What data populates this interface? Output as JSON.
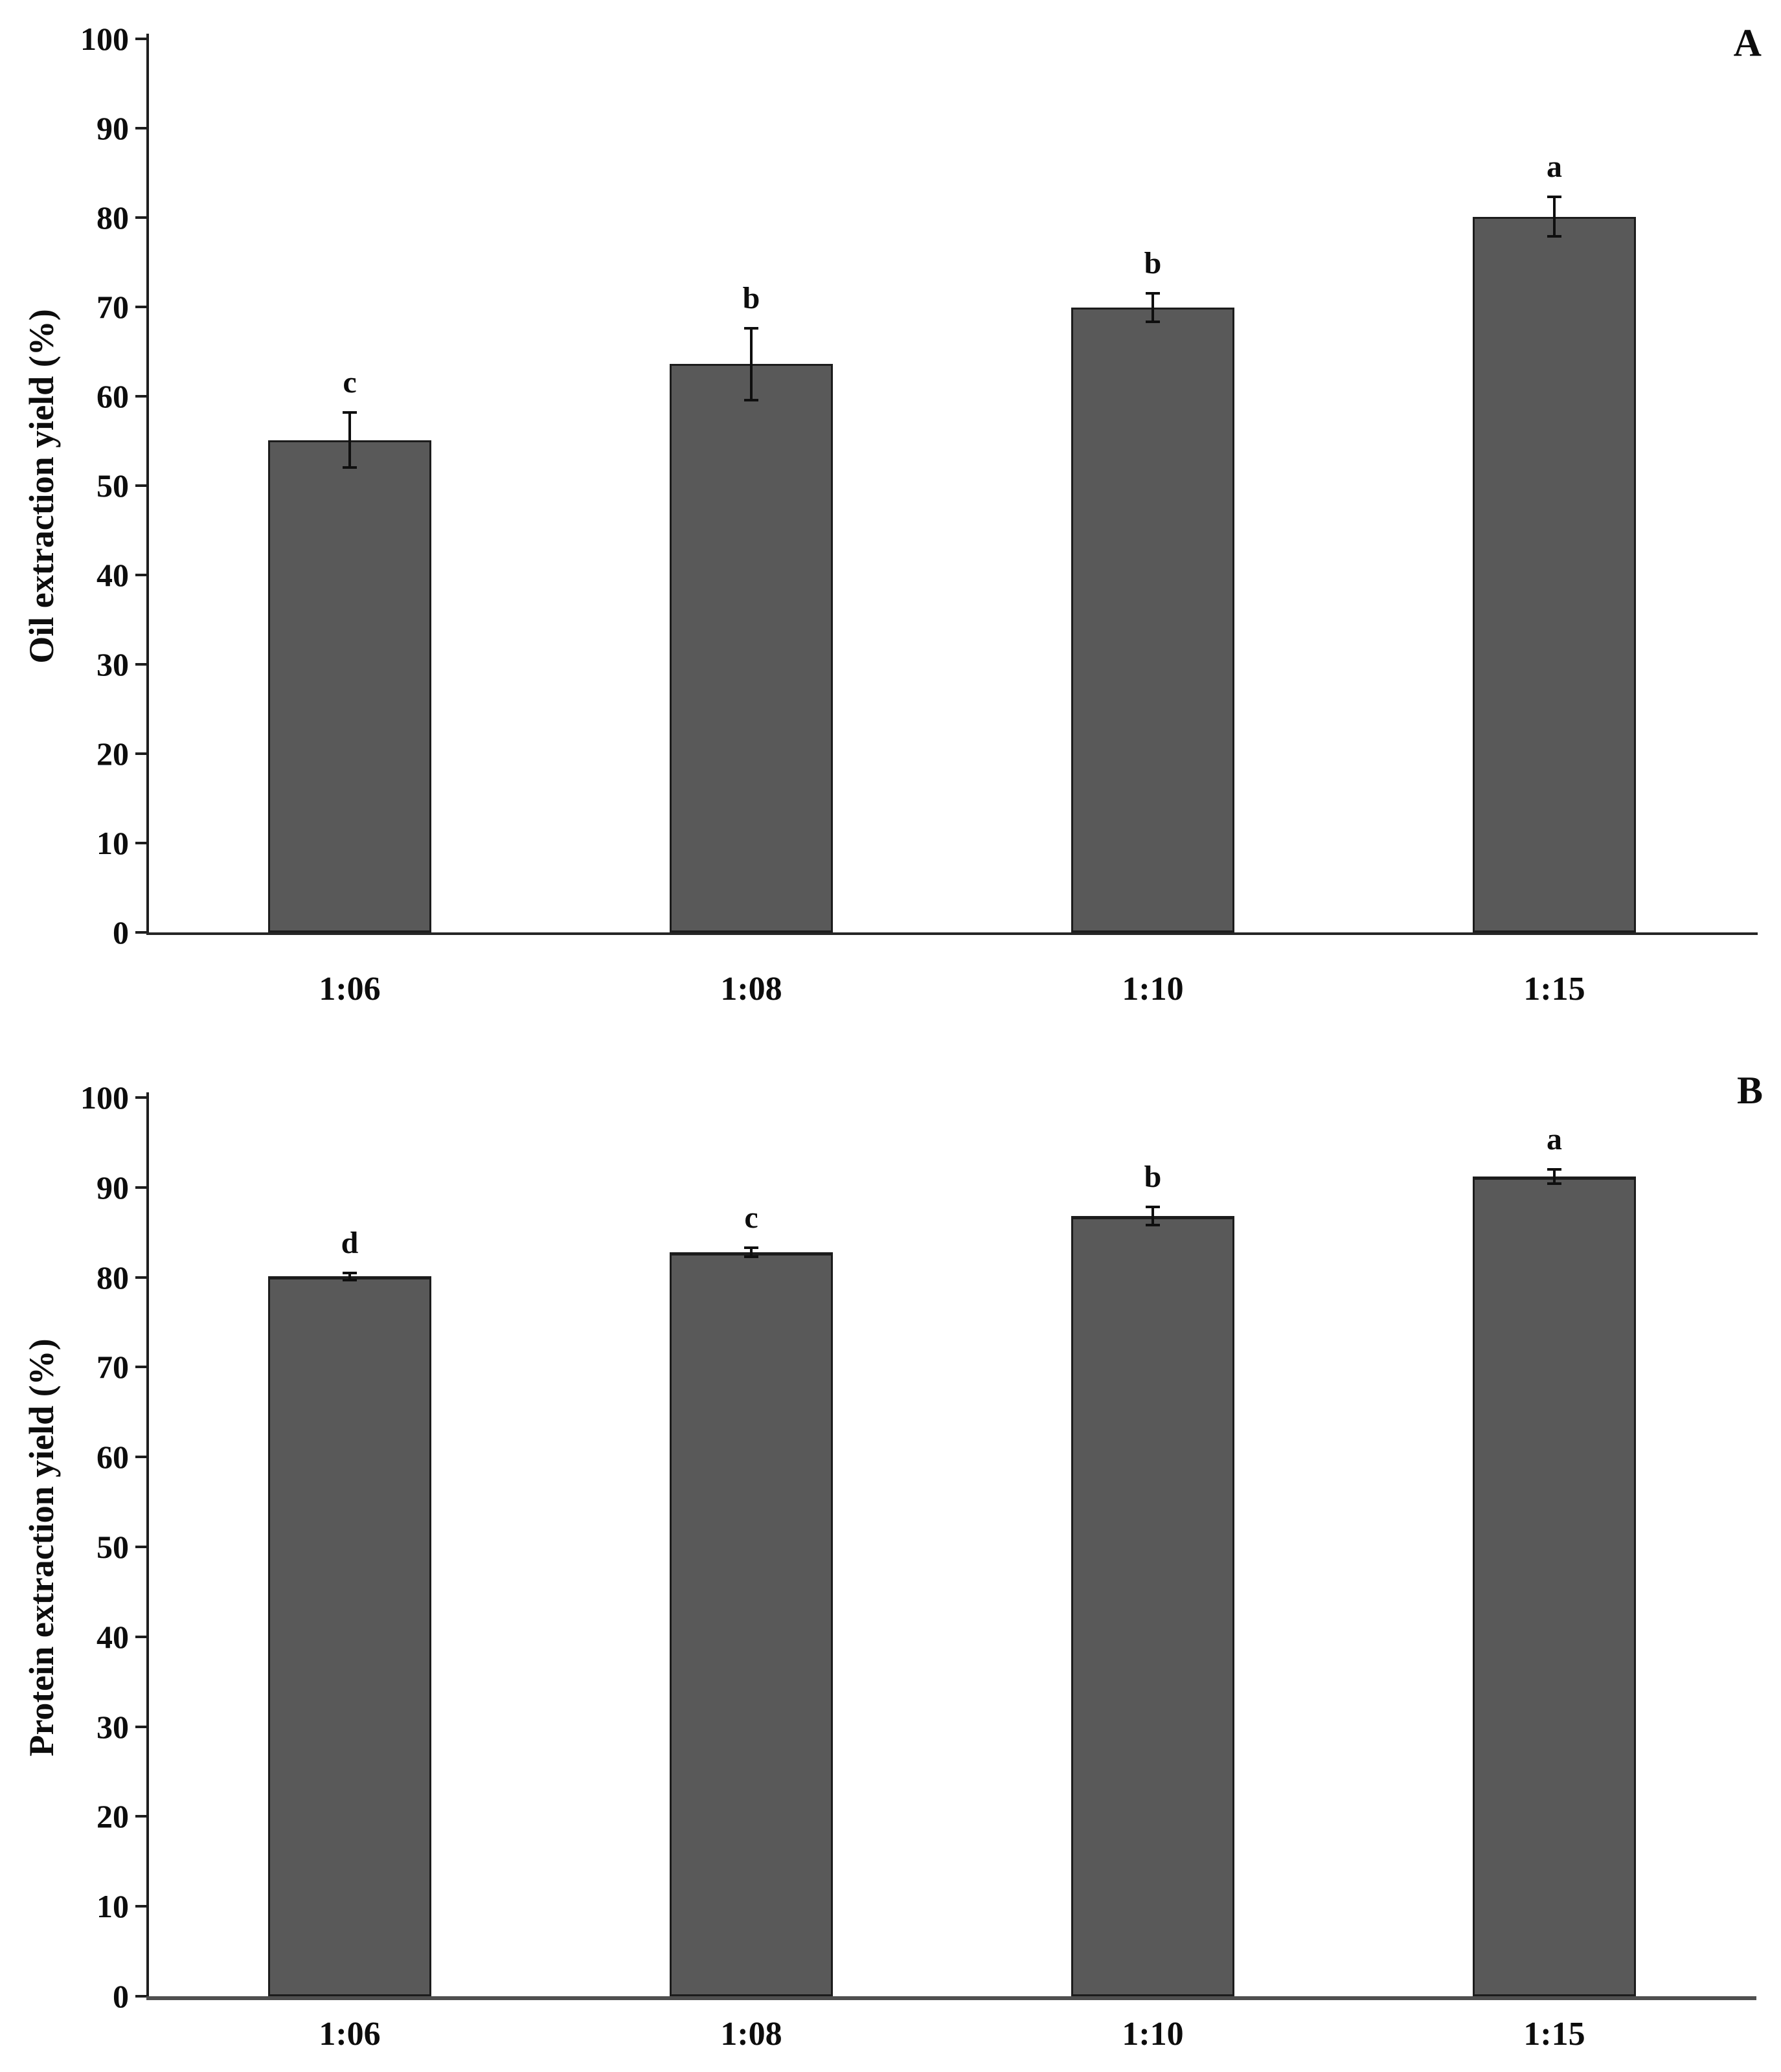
{
  "chart_data": [
    {
      "type": "bar",
      "panel_label": "A",
      "ylabel": "Oil extraction yield (%)",
      "xlabel": "",
      "ylim": [
        0,
        100
      ],
      "ytick_step": 10,
      "yticks": [
        0,
        10,
        20,
        30,
        40,
        50,
        60,
        70,
        80,
        90,
        100
      ],
      "categories": [
        "1:06",
        "1:08",
        "1:10",
        "1:15"
      ],
      "values": [
        55.1,
        63.6,
        69.9,
        80.1
      ],
      "error_bars": [
        3.1,
        4.0,
        1.6,
        2.2
      ],
      "significance_letters": [
        "c",
        "b",
        "b",
        "a"
      ],
      "bar_color": "#595959",
      "bar_border_color": "#1c1c1c",
      "grid": false,
      "legend": null
    },
    {
      "type": "bar",
      "panel_label": "B",
      "ylabel": "Protein extraction yield (%)",
      "xlabel": "",
      "ylim": [
        0,
        100
      ],
      "ytick_step": 10,
      "yticks": [
        0,
        10,
        20,
        30,
        40,
        50,
        60,
        70,
        80,
        90,
        100
      ],
      "categories": [
        "1:06",
        "1:08",
        "1:10",
        "1:15"
      ],
      "values": [
        80.1,
        82.8,
        86.8,
        91.2
      ],
      "error_bars": [
        0.4,
        0.5,
        1.0,
        0.8
      ],
      "significance_letters": [
        "d",
        "c",
        "b",
        "a"
      ],
      "bar_color": "#595959",
      "bar_border_color": "#1c1c1c",
      "grid": false,
      "legend": null
    }
  ]
}
